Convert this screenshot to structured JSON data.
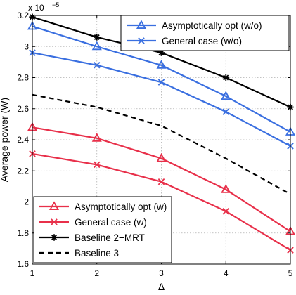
{
  "chart_data": {
    "type": "line",
    "x": [
      1,
      2,
      3,
      4,
      5
    ],
    "xlabel": "Δ",
    "ylabel": "Average power (W)",
    "y_exponent_label": "x 10",
    "y_exponent_power": "−5",
    "xlim": [
      1,
      5
    ],
    "ylim": [
      1.6,
      3.2
    ],
    "x_ticks": [
      "1",
      "2",
      "3",
      "4",
      "5"
    ],
    "y_ticks": [
      "1.6",
      "1.8",
      "2",
      "2.2",
      "2.4",
      "2.6",
      "2.8",
      "3",
      "3.2"
    ],
    "grid": true,
    "series": [
      {
        "name": "Asymptotically opt (w/o)",
        "values": [
          3.13,
          3.0,
          2.88,
          2.68,
          2.45
        ],
        "color": "#3a6fe0",
        "marker": "triangle",
        "dash": "solid"
      },
      {
        "name": "General case (w/o)",
        "values": [
          2.96,
          2.88,
          2.77,
          2.58,
          2.36
        ],
        "color": "#3a6fe0",
        "marker": "x",
        "dash": "solid"
      },
      {
        "name": "Asymptotically opt (w)",
        "values": [
          2.48,
          2.41,
          2.28,
          2.08,
          1.81
        ],
        "color": "#e8304a",
        "marker": "triangle",
        "dash": "solid"
      },
      {
        "name": "General case (w)",
        "values": [
          2.31,
          2.24,
          2.13,
          1.94,
          1.69
        ],
        "color": "#e8304a",
        "marker": "x",
        "dash": "solid"
      },
      {
        "name": "Baseline 2−MRT",
        "values": [
          3.19,
          3.06,
          2.96,
          2.8,
          2.61
        ],
        "color": "#000000",
        "marker": "star",
        "dash": "solid"
      },
      {
        "name": "Baseline 3",
        "values": [
          2.69,
          2.61,
          2.49,
          2.28,
          2.05
        ],
        "color": "#000000",
        "marker": "none",
        "dash": "dashed"
      }
    ],
    "legends": [
      {
        "placement": "top-right",
        "series": [
          0,
          1
        ]
      },
      {
        "placement": "bottom-left",
        "series": [
          2,
          3,
          4,
          5
        ]
      }
    ]
  }
}
